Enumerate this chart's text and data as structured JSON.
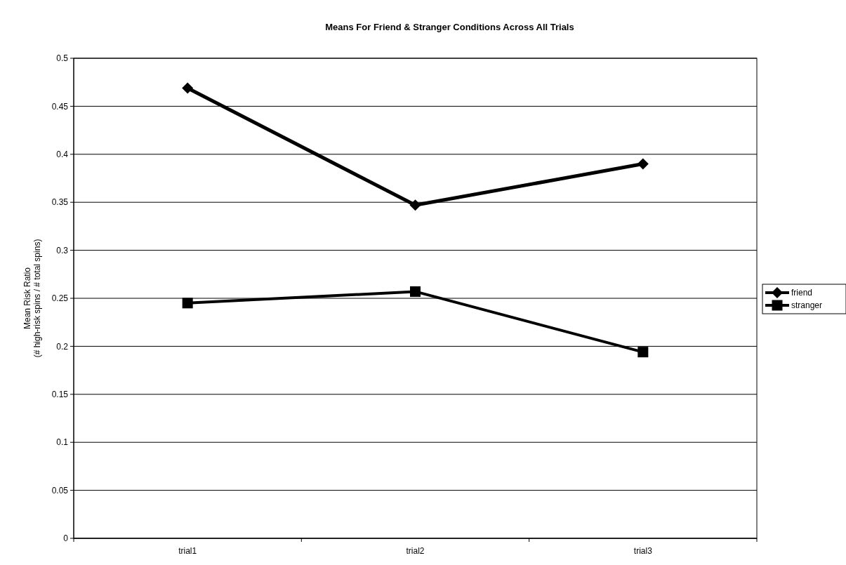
{
  "chart_data": {
    "type": "line",
    "title": "Means For Friend & Stranger Conditions Across All Trials",
    "ylabel": "Mean Risk Ratio\n(# high-risk spins / # total spins)",
    "categories": [
      "trial1",
      "trial2",
      "trial3"
    ],
    "series": [
      {
        "name": "friend",
        "color": "#000000",
        "values": [
          0.469,
          0.347,
          0.39
        ],
        "marker": "diamond"
      },
      {
        "name": "stranger",
        "color": "#000000",
        "values": [
          0.245,
          0.257,
          0.194
        ],
        "marker": "square"
      }
    ],
    "ylim": [
      0,
      0.5
    ],
    "yticks": [
      0,
      0.05,
      0.1,
      0.15,
      0.2,
      0.25,
      0.3,
      0.35,
      0.4,
      0.45,
      0.5
    ],
    "grid": "y",
    "legend": "right"
  }
}
